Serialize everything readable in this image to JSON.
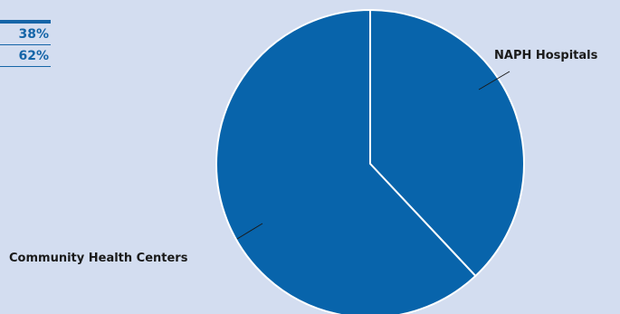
{
  "chart_data": {
    "type": "pie",
    "title": "",
    "slices": [
      {
        "label": "NAPH Hospitals",
        "value": 38,
        "display": "38%",
        "color": "#0864ab"
      },
      {
        "label": "Community Health Centers",
        "value": 62,
        "display": "62%",
        "color": "#0864ab"
      }
    ],
    "start_angle": "12 o'clock",
    "direction": "clockwise",
    "slice_border_color": "#ffffff",
    "background_color": "#d3ddf0",
    "legend": {
      "placement": "top-left",
      "values": [
        "38%",
        "62%"
      ],
      "text_color": "#1565a8"
    }
  }
}
